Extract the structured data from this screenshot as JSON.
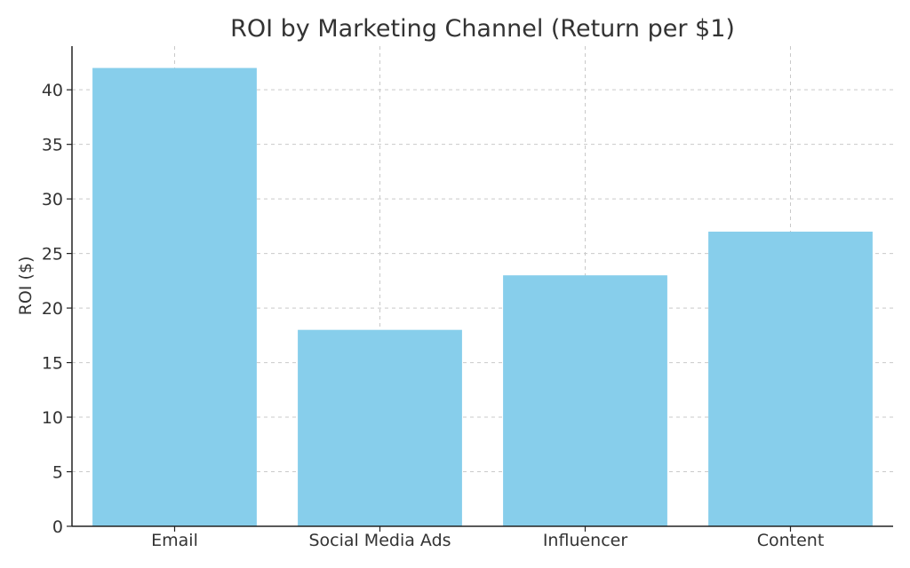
{
  "chart_data": {
    "type": "bar",
    "title": "ROI by Marketing Channel (Return per $1)",
    "xlabel": "",
    "ylabel": "ROI ($)",
    "categories": [
      "Email",
      "Social Media Ads",
      "Influencer",
      "Content"
    ],
    "values": [
      42,
      18,
      23,
      27
    ],
    "ylim": [
      0,
      44
    ],
    "yticks": [
      0,
      5,
      10,
      15,
      20,
      25,
      30,
      35,
      40
    ],
    "ytick_labels": [
      "0",
      "5",
      "10",
      "15",
      "20",
      "25",
      "30",
      "35",
      "40"
    ],
    "grid": true,
    "bar_color": "#87ceeb"
  }
}
